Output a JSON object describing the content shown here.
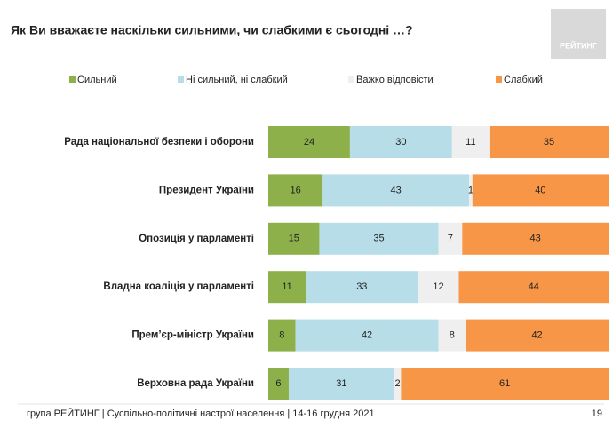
{
  "chart_data": {
    "type": "stacked-bar-horizontal",
    "title": "Як Ви вважаєте наскільки сильними, чи слабкими є сьогодні …?",
    "categories": [
      "Рада національної безпеки і оборони",
      "Президент України",
      "Опозиція у парламенті",
      "Владна коаліція у парламенті",
      "Прем’єр-міністр України",
      "Верховна рада України"
    ],
    "series": [
      {
        "name": "Сильний",
        "color": "#8db04a",
        "values": [
          24,
          16,
          15,
          11,
          8,
          6
        ]
      },
      {
        "name": "Ні сильний, ні слабкий",
        "color": "#b7dde8",
        "values": [
          30,
          43,
          35,
          33,
          42,
          31
        ]
      },
      {
        "name": "Важко відповісти",
        "color": "#efefef",
        "values": [
          11,
          1,
          7,
          12,
          8,
          2
        ]
      },
      {
        "name": "Слабкий",
        "color": "#f79646",
        "values": [
          35,
          40,
          43,
          44,
          42,
          61
        ]
      }
    ],
    "legend": "top"
  },
  "logo": "РЕЙТИНГ",
  "footer": "група РЕЙТИНГ | Суспільно-політичні настрої населення |  14-16 грудня 2021",
  "page_number": "19"
}
